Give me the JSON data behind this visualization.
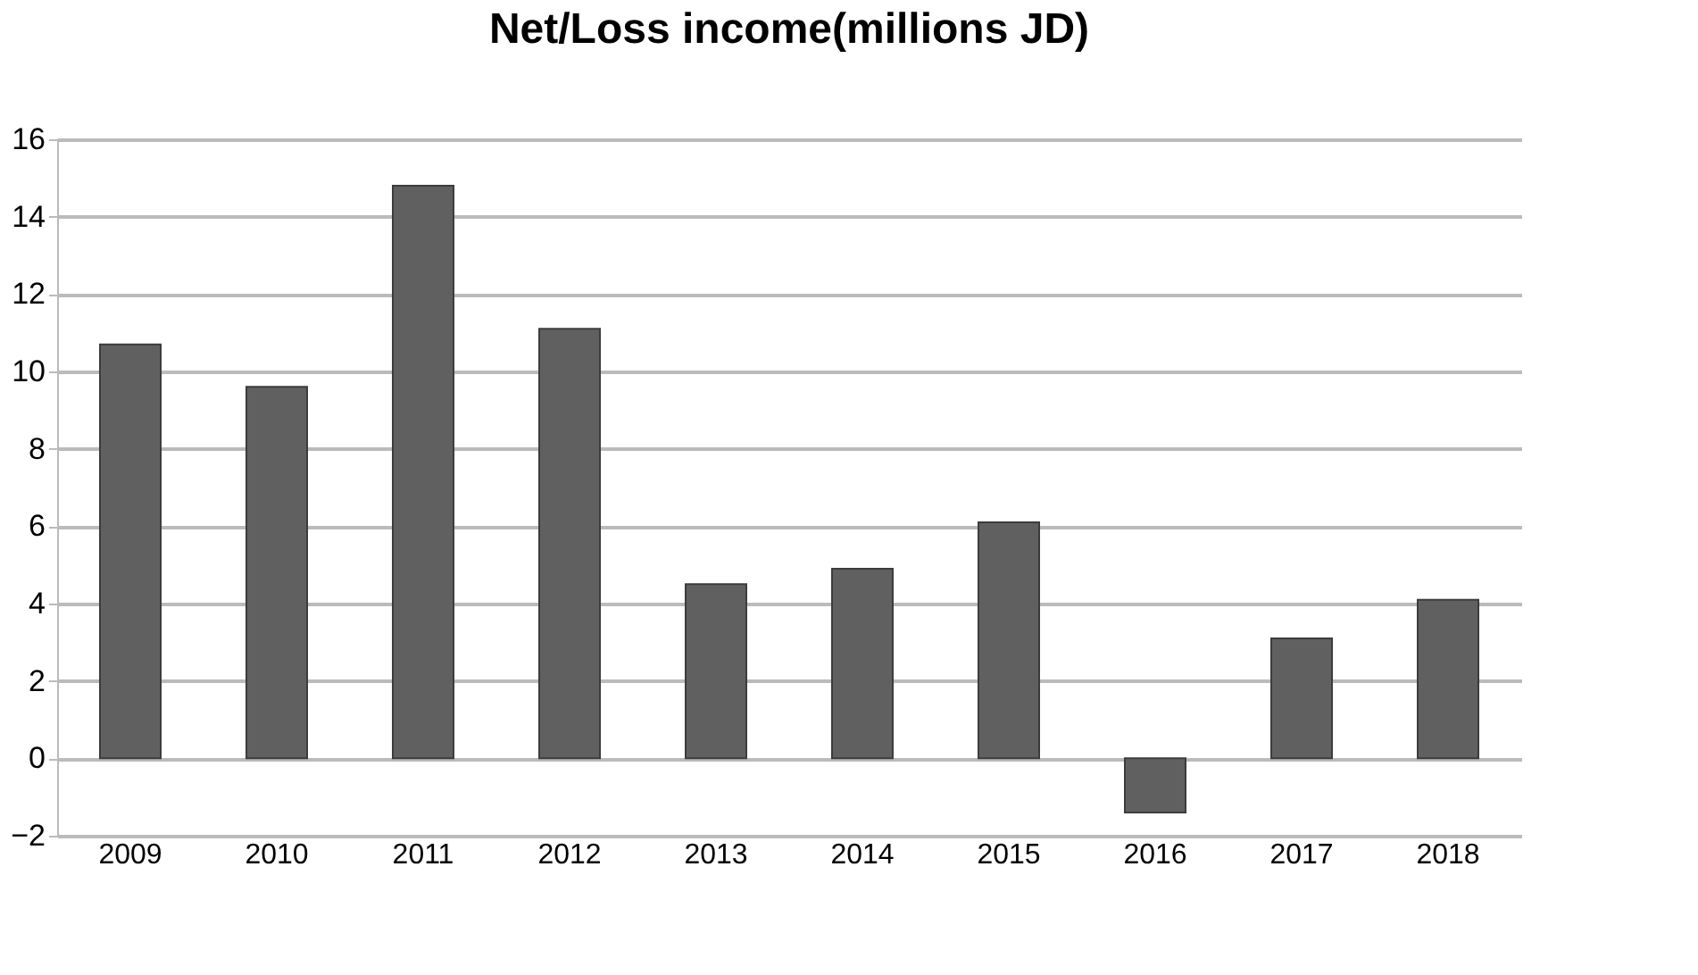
{
  "chart_data": {
    "type": "bar",
    "title": "Net/Loss income(millions JD)",
    "categories": [
      "2009",
      "2010",
      "2011",
      "2012",
      "2013",
      "2014",
      "2015",
      "2016",
      "2017",
      "2018"
    ],
    "values": [
      10.7,
      9.6,
      14.8,
      11.1,
      4.5,
      4.9,
      6.1,
      -1.4,
      3.1,
      4.1
    ],
    "color": "#606060",
    "ylim": [
      -2,
      16
    ],
    "yticks": [
      -2,
      0,
      2,
      4,
      6,
      8,
      10,
      12,
      14,
      16
    ],
    "grid": "y"
  }
}
